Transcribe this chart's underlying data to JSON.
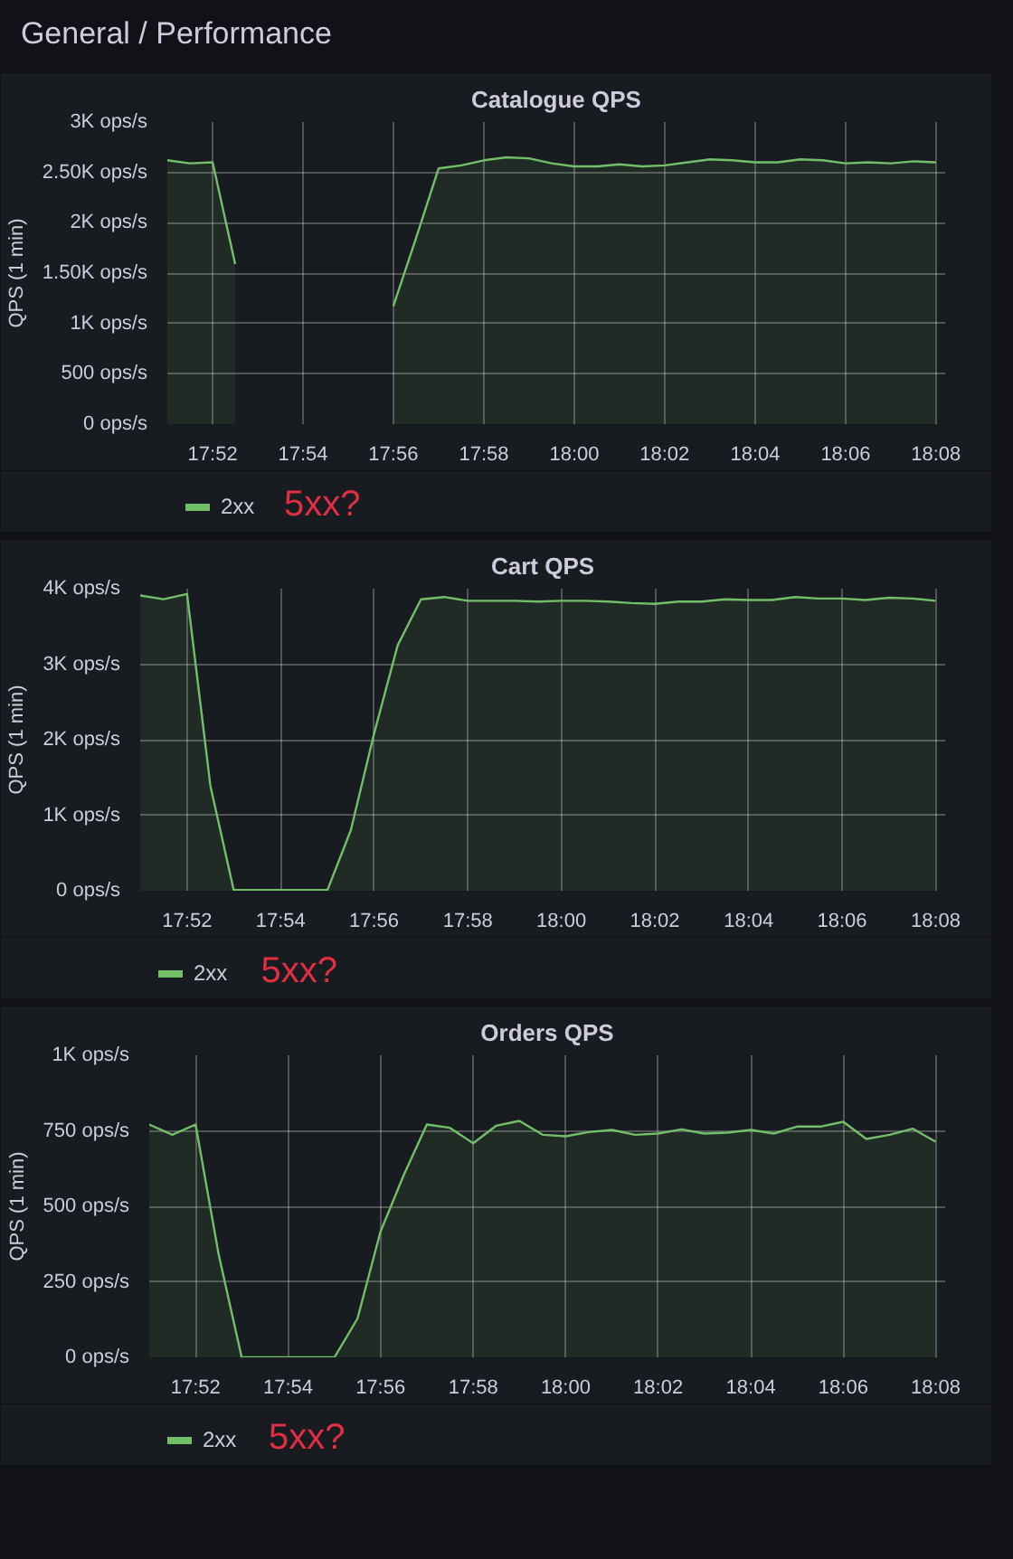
{
  "chart_data": [
    {
      "type": "other",
      "title": "General / Performance"
    },
    {
      "type": "area",
      "title": "Catalogue QPS",
      "ylabel": "QPS (1 min)",
      "annotations": [
        "5xx?"
      ],
      "grid": true,
      "legend": "bottom left",
      "x": [
        17.85,
        17.8583,
        17.8667,
        17.875,
        17.8833,
        17.8917,
        17.9,
        17.9083,
        17.9167,
        17.925,
        17.9333,
        17.9417,
        17.95,
        17.9583,
        17.9667,
        17.975,
        17.9833,
        17.9917,
        18.0,
        18.0083,
        18.0167,
        18.025,
        18.0333,
        18.0417,
        18.05,
        18.0583,
        18.0667,
        18.075,
        18.0833,
        18.0917,
        18.1,
        18.1083,
        18.1167,
        18.125,
        18.1333
      ],
      "series": [
        {
          "name": "2xx",
          "color": "#73bf69",
          "values": [
            2620,
            2590,
            2600,
            1590,
            null,
            null,
            null,
            null,
            null,
            null,
            1170,
            1850,
            2540,
            2570,
            2620,
            2650,
            2640,
            2590,
            2560,
            2560,
            2580,
            2560,
            2570,
            2600,
            2630,
            2620,
            2600,
            2600,
            2630,
            2620,
            2590,
            2600,
            2590,
            2610,
            2600
          ]
        }
      ],
      "xlim": [
        17.85,
        18.1367
      ],
      "xticks": [
        {
          "value": 17.8667,
          "label": "17:52"
        },
        {
          "value": 17.9,
          "label": "17:54"
        },
        {
          "value": 17.9333,
          "label": "17:56"
        },
        {
          "value": 17.9667,
          "label": "17:58"
        },
        {
          "value": 18.0,
          "label": "18:00"
        },
        {
          "value": 18.0333,
          "label": "18:02"
        },
        {
          "value": 18.0667,
          "label": "18:04"
        },
        {
          "value": 18.1,
          "label": "18:06"
        },
        {
          "value": 18.1333,
          "label": "18:08"
        }
      ],
      "ylim": [
        0,
        3000
      ],
      "yticks": [
        {
          "value": 0,
          "label": "0 ops/s"
        },
        {
          "value": 500,
          "label": "500 ops/s"
        },
        {
          "value": 1000,
          "label": "1K ops/s"
        },
        {
          "value": 1500,
          "label": "1.50K ops/s"
        },
        {
          "value": 2000,
          "label": "2K ops/s"
        },
        {
          "value": 2500,
          "label": "2.50K ops/s"
        },
        {
          "value": 3000,
          "label": "3K ops/s"
        }
      ]
    },
    {
      "type": "area",
      "title": "Cart QPS",
      "ylabel": "QPS (1 min)",
      "annotations": [
        "5xx?"
      ],
      "grid": true,
      "legend": "bottom left",
      "x": [
        17.85,
        17.8583,
        17.8667,
        17.875,
        17.8833,
        17.8917,
        17.9,
        17.9083,
        17.9167,
        17.925,
        17.9333,
        17.9417,
        17.95,
        17.9583,
        17.9667,
        17.975,
        17.9833,
        17.9917,
        18.0,
        18.0083,
        18.0167,
        18.025,
        18.0333,
        18.0417,
        18.05,
        18.0583,
        18.0667,
        18.075,
        18.0833,
        18.0917,
        18.1,
        18.1083,
        18.1167,
        18.125,
        18.1333
      ],
      "series": [
        {
          "name": "2xx",
          "color": "#73bf69",
          "values": [
            3910,
            3860,
            3930,
            1390,
            10,
            10,
            10,
            10,
            10,
            800,
            2080,
            3250,
            3860,
            3890,
            3840,
            3840,
            3840,
            3830,
            3840,
            3840,
            3830,
            3810,
            3800,
            3830,
            3830,
            3860,
            3850,
            3850,
            3890,
            3870,
            3870,
            3850,
            3880,
            3870,
            3840
          ]
        }
      ],
      "xlim": [
        17.85,
        18.1367
      ],
      "xticks": [
        {
          "value": 17.8667,
          "label": "17:52"
        },
        {
          "value": 17.9,
          "label": "17:54"
        },
        {
          "value": 17.9333,
          "label": "17:56"
        },
        {
          "value": 17.9667,
          "label": "17:58"
        },
        {
          "value": 18.0,
          "label": "18:00"
        },
        {
          "value": 18.0333,
          "label": "18:02"
        },
        {
          "value": 18.0667,
          "label": "18:04"
        },
        {
          "value": 18.1,
          "label": "18:06"
        },
        {
          "value": 18.1333,
          "label": "18:08"
        }
      ],
      "ylim": [
        0,
        4000
      ],
      "yticks": [
        {
          "value": 0,
          "label": "0 ops/s"
        },
        {
          "value": 1000,
          "label": "1K ops/s"
        },
        {
          "value": 2000,
          "label": "2K ops/s"
        },
        {
          "value": 3000,
          "label": "3K ops/s"
        },
        {
          "value": 4000,
          "label": "4K ops/s"
        }
      ]
    },
    {
      "type": "area",
      "title": "Orders QPS",
      "ylabel": "QPS (1 min)",
      "annotations": [
        "5xx?"
      ],
      "grid": true,
      "legend": "bottom left",
      "x": [
        17.85,
        17.8583,
        17.8667,
        17.875,
        17.8833,
        17.8917,
        17.9,
        17.9083,
        17.9167,
        17.925,
        17.9333,
        17.9417,
        17.95,
        17.9583,
        17.9667,
        17.975,
        17.9833,
        17.9917,
        18.0,
        18.0083,
        18.0167,
        18.025,
        18.0333,
        18.0417,
        18.05,
        18.0583,
        18.0667,
        18.075,
        18.0833,
        18.0917,
        18.1,
        18.1083,
        18.1167,
        18.125,
        18.1333
      ],
      "series": [
        {
          "name": "2xx",
          "color": "#73bf69",
          "values": [
            771,
            737,
            771,
            341,
            0,
            0,
            0,
            0,
            0,
            128,
            416,
            604,
            771,
            760,
            709,
            767,
            783,
            737,
            732,
            746,
            753,
            737,
            741,
            755,
            741,
            744,
            753,
            741,
            764,
            764,
            780,
            723,
            737,
            757,
            714
          ]
        }
      ],
      "xlim": [
        17.85,
        18.1367
      ],
      "xticks": [
        {
          "value": 17.8667,
          "label": "17:52"
        },
        {
          "value": 17.9,
          "label": "17:54"
        },
        {
          "value": 17.9333,
          "label": "17:56"
        },
        {
          "value": 17.9667,
          "label": "17:58"
        },
        {
          "value": 18.0,
          "label": "18:00"
        },
        {
          "value": 18.0333,
          "label": "18:02"
        },
        {
          "value": 18.0667,
          "label": "18:04"
        },
        {
          "value": 18.1,
          "label": "18:06"
        },
        {
          "value": 18.1333,
          "label": "18:08"
        }
      ],
      "ylim": [
        0,
        1000
      ],
      "yticks": [
        {
          "value": 0,
          "label": "0 ops/s"
        },
        {
          "value": 250,
          "label": "250 ops/s"
        },
        {
          "value": 500,
          "label": "500 ops/s"
        },
        {
          "value": 750,
          "label": "750 ops/s"
        },
        {
          "value": 1000,
          "label": "1K ops/s"
        }
      ]
    }
  ]
}
